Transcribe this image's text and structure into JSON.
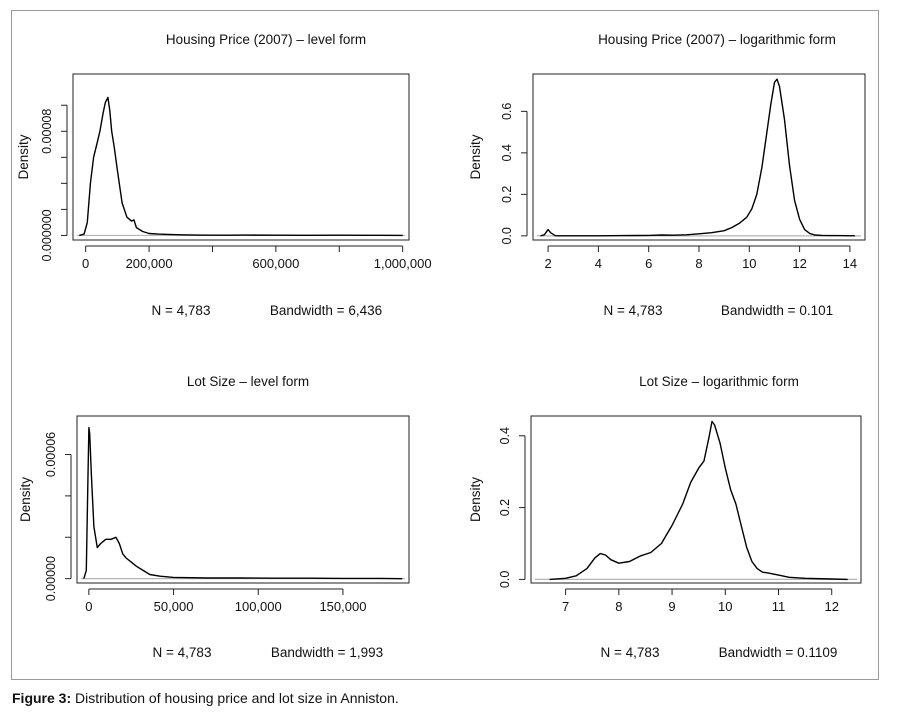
{
  "figure_caption": {
    "label": "Figure 3:",
    "text": " Distribution of housing price and lot size in Anniston."
  },
  "chart_data": [
    {
      "type": "line",
      "title": "Housing Price (2007) – level form",
      "ylabel": "Density",
      "xlabel": "",
      "xlim": [
        -40000,
        1020000
      ],
      "ylim": [
        -3.5e-06,
        0.000124
      ],
      "xticks": [
        0,
        200000,
        600000,
        1000000
      ],
      "xtick_labels": [
        "0",
        "200,000",
        "600,000",
        "1,000,000"
      ],
      "xtick_marks": [
        0,
        200000,
        400000,
        600000,
        800000,
        1000000
      ],
      "yticks": [
        0,
        8e-05
      ],
      "ytick_labels": [
        "0.000000",
        "0.00008"
      ],
      "ytick_marks": [
        0,
        2e-05,
        4e-05,
        6e-05,
        8e-05,
        0.0001
      ],
      "n_label": "N = 4,783",
      "bandwidth_label": "Bandwidth = 6,436",
      "series": [
        {
          "x": [
            -20000,
            -5000,
            5000,
            15000,
            25000,
            35000,
            45000,
            55000,
            62000,
            70000,
            76000,
            82000,
            90000,
            100000,
            115000,
            130000,
            145000,
            152000,
            160000,
            180000,
            200000,
            230000,
            260000,
            300000,
            350000,
            400000,
            450000,
            500000,
            600000,
            700000,
            800000,
            900000,
            1000000
          ],
          "y": [
            0,
            1e-06,
            1e-05,
            4e-05,
            6e-05,
            7e-05,
            8e-05,
            9.4e-05,
            0.000102,
            0.000106,
            9.6e-05,
            8e-05,
            6.8e-05,
            5e-05,
            2.5e-05,
            1.4e-05,
            1.1e-05,
            1.2e-05,
            6e-06,
            3e-06,
            1.5e-06,
            1e-06,
            8e-07,
            5e-07,
            3e-07,
            2e-07,
            2e-07,
            3e-07,
            2e-07,
            1e-07,
            2e-07,
            1e-07,
            0
          ]
        }
      ]
    },
    {
      "type": "line",
      "title": "Housing Price (2007) – logarithmic form",
      "ylabel": "Density",
      "xlabel": "",
      "xlim": [
        1.4,
        14.6
      ],
      "ylim": [
        -0.02,
        0.78
      ],
      "xticks": [
        2,
        4,
        6,
        8,
        10,
        12,
        14
      ],
      "xtick_labels": [
        "2",
        "4",
        "6",
        "8",
        "10",
        "12",
        "14"
      ],
      "yticks": [
        0,
        0.2,
        0.4,
        0.6
      ],
      "ytick_labels": [
        "0.0",
        "0.2",
        "0.4",
        "0.6"
      ],
      "n_label": "N = 4,783",
      "bandwidth_label": "Bandwidth = 0.101",
      "series": [
        {
          "x": [
            1.7,
            1.85,
            2.0,
            2.1,
            2.3,
            3,
            4,
            5,
            6,
            6.5,
            7,
            7.5,
            8,
            8.5,
            9,
            9.3,
            9.6,
            9.9,
            10.1,
            10.3,
            10.5,
            10.7,
            10.85,
            11.0,
            11.1,
            11.2,
            11.4,
            11.6,
            11.8,
            12.0,
            12.2,
            12.4,
            12.6,
            12.9,
            13.2,
            13.5,
            14.2
          ],
          "y": [
            0,
            0.005,
            0.03,
            0.015,
            0,
            0,
            0,
            0.001,
            0.002,
            0.004,
            0.003,
            0.005,
            0.01,
            0.015,
            0.025,
            0.04,
            0.06,
            0.09,
            0.13,
            0.2,
            0.33,
            0.5,
            0.63,
            0.74,
            0.755,
            0.72,
            0.56,
            0.34,
            0.17,
            0.08,
            0.03,
            0.012,
            0.004,
            0.002,
            0.001,
            0.001,
            0
          ]
        }
      ]
    },
    {
      "type": "line",
      "title": "Lot Size – level form",
      "ylabel": "Density",
      "xlabel": "",
      "xlim": [
        -7000,
        189000
      ],
      "ylim": [
        -2.1e-06,
        7.86e-05
      ],
      "xticks": [
        0,
        50000,
        100000,
        150000
      ],
      "xtick_labels": [
        "0",
        "50,000",
        "100,000",
        "150,000"
      ],
      "yticks": [
        0,
        6e-05
      ],
      "ytick_labels": [
        "0.00000",
        "0.00006"
      ],
      "ytick_marks": [
        0,
        2e-05,
        4e-05,
        6e-05
      ],
      "n_label": "N = 4,783",
      "bandwidth_label": "Bandwidth = 1,993",
      "series": [
        {
          "x": [
            -3000,
            -1500,
            -500,
            0,
            500,
            1500,
            3000,
            5000,
            7000,
            10000,
            13000,
            16000,
            18000,
            20000,
            22000,
            25000,
            28000,
            32000,
            36000,
            42000,
            50000,
            70000,
            90000,
            110000,
            130000,
            150000,
            170000,
            185000
          ],
          "y": [
            0,
            4e-06,
            5e-05,
            7.3e-05,
            7e-05,
            5e-05,
            2.5e-05,
            1.5e-05,
            1.7e-05,
            1.9e-05,
            1.9e-05,
            2e-05,
            1.7e-05,
            1.2e-05,
            1e-05,
            8e-06,
            6e-06,
            4e-06,
            2e-06,
            1.2e-06,
            6e-07,
            3e-07,
            3e-07,
            2e-07,
            2e-07,
            1e-07,
            1e-07,
            0
          ]
        }
      ]
    },
    {
      "type": "line",
      "title": "Lot Size – logarithmic form",
      "ylabel": "Density",
      "xlabel": "",
      "xlim": [
        6.35,
        12.55
      ],
      "ylim": [
        -0.01,
        0.455
      ],
      "xticks": [
        7,
        8,
        9,
        10,
        11,
        12
      ],
      "xtick_labels": [
        "7",
        "8",
        "9",
        "10",
        "11",
        "12"
      ],
      "yticks": [
        0,
        0.2,
        0.4
      ],
      "ytick_labels": [
        "0.0",
        "0.2",
        "0.4"
      ],
      "n_label": "N = 4,783",
      "bandwidth_label": "Bandwidth = 0.1109",
      "series": [
        {
          "x": [
            6.7,
            7.0,
            7.2,
            7.4,
            7.55,
            7.65,
            7.75,
            7.85,
            8.0,
            8.2,
            8.4,
            8.6,
            8.8,
            9.0,
            9.2,
            9.35,
            9.5,
            9.6,
            9.7,
            9.75,
            9.8,
            9.9,
            10.0,
            10.1,
            10.2,
            10.3,
            10.4,
            10.5,
            10.6,
            10.7,
            10.8,
            11.0,
            11.2,
            11.5,
            12.0,
            12.3
          ],
          "y": [
            0,
            0.003,
            0.01,
            0.03,
            0.06,
            0.072,
            0.068,
            0.055,
            0.045,
            0.05,
            0.065,
            0.075,
            0.1,
            0.15,
            0.21,
            0.27,
            0.31,
            0.33,
            0.4,
            0.44,
            0.43,
            0.38,
            0.31,
            0.25,
            0.21,
            0.15,
            0.09,
            0.05,
            0.03,
            0.02,
            0.018,
            0.012,
            0.006,
            0.003,
            0.001,
            0
          ]
        }
      ]
    }
  ]
}
